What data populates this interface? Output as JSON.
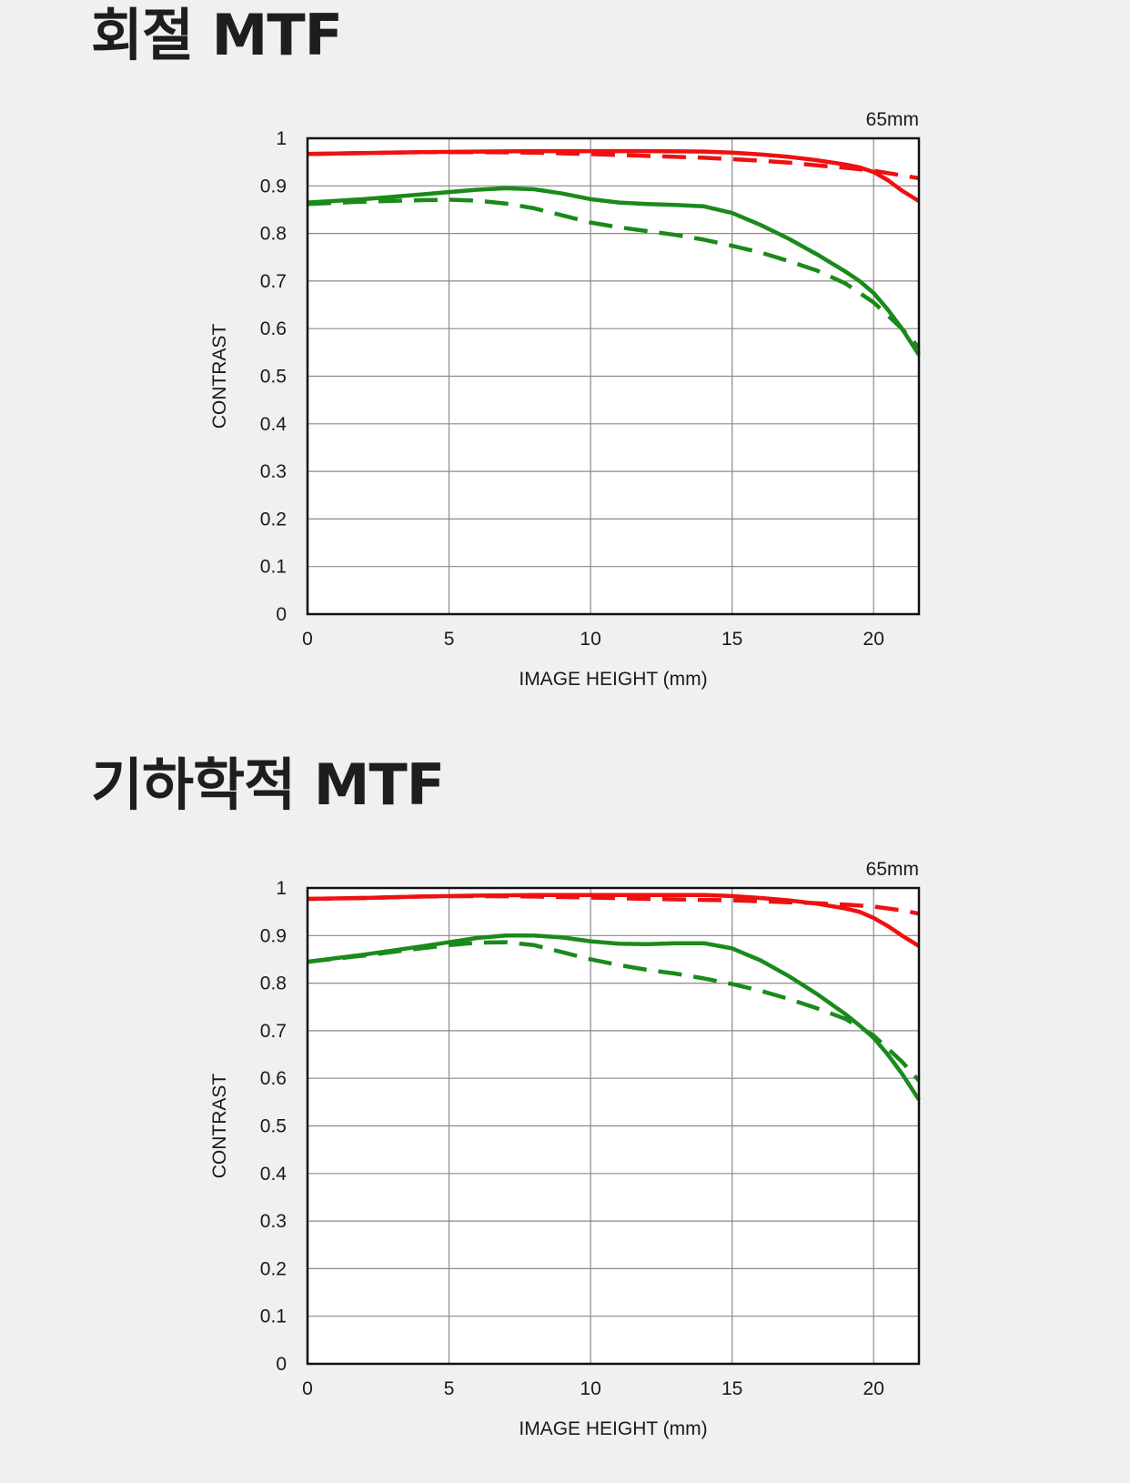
{
  "charts": [
    {
      "section_title": "회절 MTF",
      "focal_label": "65mm",
      "chart_data": {
        "type": "line",
        "xlabel": "IMAGE HEIGHT (mm)",
        "ylabel": "CONTRAST",
        "xlim": [
          0,
          21.6
        ],
        "ylim": [
          0,
          1
        ],
        "xticks": [
          0,
          5,
          10,
          15,
          20
        ],
        "yticks": [
          0,
          0.1,
          0.2,
          0.3,
          0.4,
          0.5,
          0.6,
          0.7,
          0.8,
          0.9,
          1
        ],
        "ytick_labels": [
          "0",
          "0.1",
          "0.2",
          "0.3",
          "0.4",
          "0.5",
          "0.6",
          "0.7",
          "0.8",
          "0.9",
          "1"
        ],
        "grid": true,
        "series": [
          {
            "color": "#ee1111",
            "dash": "solid",
            "x": [
              0,
              2,
              4,
              6,
              8,
              10,
              12,
              14,
              15,
              16,
              17,
              18,
              19,
              19.5,
              20,
              20.5,
              21,
              21.6
            ],
            "y": [
              0.967,
              0.969,
              0.971,
              0.972,
              0.973,
              0.973,
              0.973,
              0.972,
              0.97,
              0.966,
              0.961,
              0.954,
              0.945,
              0.939,
              0.929,
              0.912,
              0.89,
              0.868
            ]
          },
          {
            "color": "#ee1111",
            "dash": "dashed",
            "x": [
              0,
              2,
              4,
              6,
              8,
              10,
              12,
              14,
              15,
              16,
              17,
              18,
              19,
              20,
              21,
              21.6
            ],
            "y": [
              0.967,
              0.969,
              0.971,
              0.971,
              0.97,
              0.967,
              0.963,
              0.959,
              0.956,
              0.953,
              0.949,
              0.943,
              0.938,
              0.932,
              0.922,
              0.916
            ]
          },
          {
            "color": "#1a8a1a",
            "dash": "solid",
            "x": [
              0,
              2,
              4,
              6,
              7,
              8,
              9,
              10,
              11,
              12,
              13,
              14,
              15,
              16,
              17,
              18,
              19,
              19.5,
              20,
              20.5,
              21,
              21.6
            ],
            "y": [
              0.865,
              0.872,
              0.882,
              0.892,
              0.895,
              0.893,
              0.884,
              0.872,
              0.865,
              0.862,
              0.86,
              0.857,
              0.843,
              0.818,
              0.789,
              0.756,
              0.72,
              0.7,
              0.675,
              0.64,
              0.6,
              0.545
            ]
          },
          {
            "color": "#1a8a1a",
            "dash": "dashed",
            "x": [
              0,
              2,
              4,
              5,
              6,
              7,
              8,
              9,
              10,
              11,
              12,
              13,
              14,
              15,
              16,
              17,
              18,
              19,
              20,
              21,
              21.6
            ],
            "y": [
              0.862,
              0.867,
              0.87,
              0.871,
              0.869,
              0.863,
              0.853,
              0.838,
              0.823,
              0.813,
              0.805,
              0.797,
              0.787,
              0.774,
              0.76,
              0.742,
              0.722,
              0.695,
              0.655,
              0.6,
              0.56
            ]
          }
        ]
      }
    },
    {
      "section_title": "기하학적 MTF",
      "focal_label": "65mm",
      "chart_data": {
        "type": "line",
        "xlabel": "IMAGE HEIGHT (mm)",
        "ylabel": "CONTRAST",
        "xlim": [
          0,
          21.6
        ],
        "ylim": [
          0,
          1
        ],
        "xticks": [
          0,
          5,
          10,
          15,
          20
        ],
        "yticks": [
          0,
          0.1,
          0.2,
          0.3,
          0.4,
          0.5,
          0.6,
          0.7,
          0.8,
          0.9,
          1
        ],
        "ytick_labels": [
          "0",
          "0.1",
          "0.2",
          "0.3",
          "0.4",
          "0.5",
          "0.6",
          "0.7",
          "0.8",
          "0.9",
          "1"
        ],
        "grid": true,
        "series": [
          {
            "color": "#ee1111",
            "dash": "solid",
            "x": [
              0,
              2,
              4,
              6,
              8,
              10,
              12,
              14,
              15,
              16,
              17,
              18,
              19,
              19.5,
              20,
              20.5,
              21,
              21.6
            ],
            "y": [
              0.977,
              0.979,
              0.982,
              0.984,
              0.985,
              0.985,
              0.985,
              0.985,
              0.983,
              0.979,
              0.974,
              0.967,
              0.957,
              0.95,
              0.937,
              0.92,
              0.9,
              0.878
            ]
          },
          {
            "color": "#ee1111",
            "dash": "dashed",
            "x": [
              0,
              2,
              4,
              6,
              8,
              10,
              12,
              14,
              15,
              16,
              17,
              18,
              19,
              20,
              21,
              21.6
            ],
            "y": [
              0.977,
              0.979,
              0.982,
              0.983,
              0.982,
              0.98,
              0.977,
              0.975,
              0.974,
              0.972,
              0.97,
              0.968,
              0.965,
              0.961,
              0.953,
              0.946
            ]
          },
          {
            "color": "#1a8a1a",
            "dash": "solid",
            "x": [
              0,
              2,
              4,
              6,
              7,
              8,
              9,
              10,
              11,
              12,
              13,
              14,
              15,
              16,
              17,
              18,
              19,
              19.5,
              20,
              20.5,
              21,
              21.6
            ],
            "y": [
              0.845,
              0.86,
              0.877,
              0.895,
              0.9,
              0.9,
              0.896,
              0.888,
              0.883,
              0.882,
              0.884,
              0.884,
              0.873,
              0.848,
              0.815,
              0.777,
              0.735,
              0.711,
              0.685,
              0.65,
              0.61,
              0.555
            ]
          },
          {
            "color": "#1a8a1a",
            "dash": "dashed",
            "x": [
              0,
              2,
              4,
              5,
              6,
              7,
              8,
              9,
              10,
              11,
              12,
              13,
              14,
              15,
              16,
              17,
              18,
              19,
              20,
              21,
              21.6
            ],
            "y": [
              0.845,
              0.858,
              0.873,
              0.88,
              0.885,
              0.886,
              0.88,
              0.865,
              0.85,
              0.838,
              0.828,
              0.82,
              0.81,
              0.798,
              0.784,
              0.767,
              0.747,
              0.725,
              0.69,
              0.635,
              0.595
            ]
          }
        ]
      }
    }
  ]
}
